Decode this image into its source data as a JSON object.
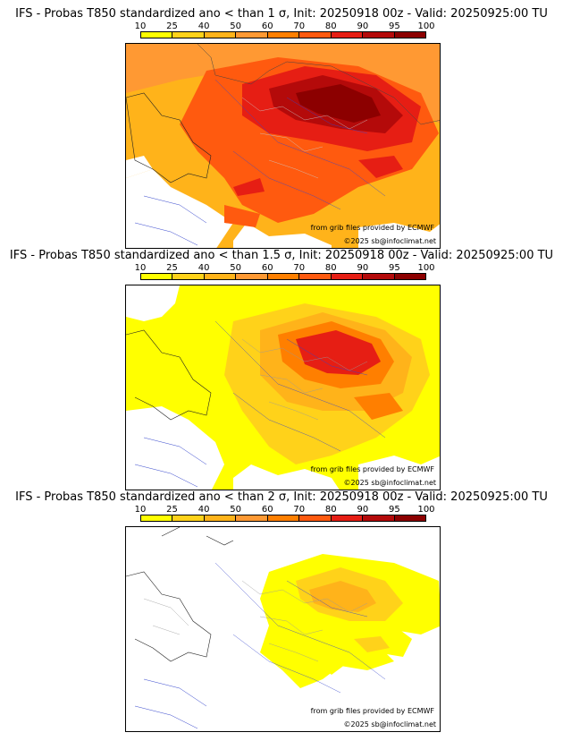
{
  "scale": {
    "labels": [
      "10",
      "25",
      "40",
      "50",
      "60",
      "70",
      "80",
      "90",
      "95",
      "100"
    ],
    "colors": [
      "#ffff00",
      "#ffd21a",
      "#ffb31a",
      "#ff9933",
      "#ff7f00",
      "#ff5a0f",
      "#e61e14",
      "#b40a0a",
      "#8c0000",
      "#5a0000"
    ]
  },
  "panels": [
    {
      "title": "IFS - Probas T850  standardized ano < than 1 σ, Init: 20250918 00z - Valid: 20250925:00 TU",
      "credit_source": "from grib files provided by ECMWF",
      "credit_copyright": "©2025 sb@infoclimat.net"
    },
    {
      "title": "IFS - Probas T850  standardized ano < than 1.5 σ, Init: 20250918 00z - Valid: 20250925:00 TU",
      "credit_source": "from grib files provided by ECMWF",
      "credit_copyright": "©2025 sb@infoclimat.net"
    },
    {
      "title": "IFS - Probas T850  standardized ano < than 2 σ, Init: 20250918 00z - Valid: 20250925:00 TU",
      "credit_source": "from grib files provided by ECMWF",
      "credit_copyright": "©2025 sb@infoclimat.net"
    }
  ]
}
